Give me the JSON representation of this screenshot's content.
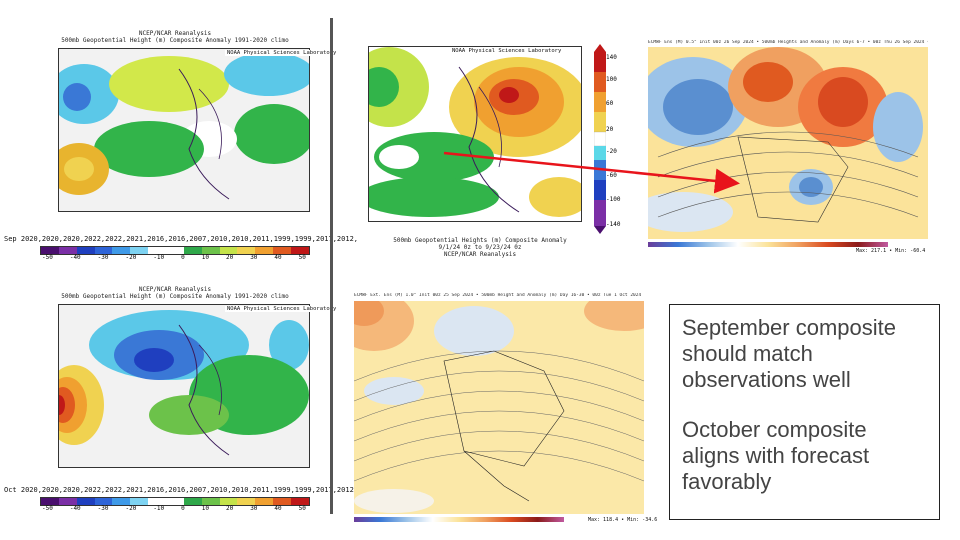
{
  "panels": {
    "sep": {
      "title_line1": "NCEP/NCAR Reanalysis",
      "title_line2": "500mb Geopotential Height (m) Composite Anomaly 1991-2020 climo",
      "stamp": "NOAA Physical Sciences Laboratory",
      "years_label": "Sep 2020,2020,2020,2022,2022,2021,2016,2016,2007,2010,2010,2011,1999,1999,2017,2012,",
      "ticks": [
        "-50",
        "-40",
        "-30",
        "-20",
        "-10",
        "0",
        "10",
        "20",
        "30",
        "40",
        "50"
      ]
    },
    "oct": {
      "title_line1": "NCEP/NCAR Reanalysis",
      "title_line2": "500mb Geopotential Height (m) Composite Anomaly 1991-2020 climo",
      "stamp": "NOAA Physical Sciences Laboratory",
      "years_label": "Oct 2020,2020,2020,2022,2022,2021,2016,2016,2007,2010,2010,2011,1999,1999,2017,2012,",
      "ticks": [
        "-50",
        "-40",
        "-30",
        "-20",
        "-10",
        "0",
        "10",
        "20",
        "30",
        "40",
        "50"
      ]
    },
    "obs": {
      "stamp": "NOAA Physical Sciences Laboratory",
      "caption_line1": "500mb Geopotential Heights (m)   Composite Anomaly",
      "caption_line2": "9/1/24 0z to 9/23/24 0z",
      "caption_line3": "NCEP/NCAR Reanalysis",
      "vticks": [
        "140",
        "100",
        "60",
        "20",
        "-20",
        "-60",
        "-100",
        "-140"
      ]
    },
    "ecmwf_top": {
      "header": "ECMWF Ens (M) 0.5° Init 00z 26 Sep 2024 • 500mb Heights and Anomaly (m)  Days 6-7 • 00z Thu 26 Sep 2024 • 00z Thu 3 Oct 2024",
      "maxmin": "Max: 217.1 • Min: -60.4"
    },
    "ecmwf_bottom": {
      "header": "ECMWF Ext. Ens (M) 1.0° Init 00z 25 Sep 2024 • 500mb Height and Anomaly (m) Day 16-30 • 00z Tue 1 Oct 2024 • 00z Thu 31 Oct 2024",
      "maxmin": "Max: 118.4 • Min: -34.6"
    }
  },
  "notes": {
    "line1": "September composite should match observations well",
    "line2": "October composite aligns with forecast favorably"
  },
  "colors": {
    "arrow": "#e8141b",
    "divider": "#555555",
    "note_text": "#444444"
  }
}
